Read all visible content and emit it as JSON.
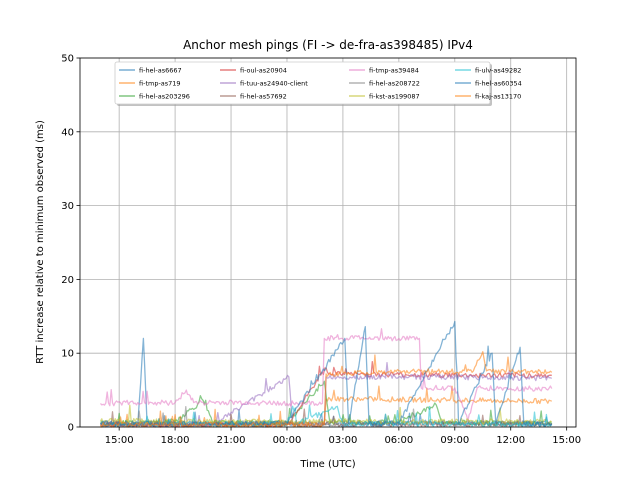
{
  "chart_data": {
    "type": "line",
    "title": "Anchor mesh pings (FI -> de-fra-as398485) IPv4",
    "xlabel": "Time (UTC)",
    "ylabel": "RTT increase relative to minimum observed (ms)",
    "ylim": [
      0,
      50
    ],
    "xlim_hours": [
      12.9,
      39.5
    ],
    "yticks": [
      0,
      10,
      20,
      30,
      40,
      50
    ],
    "xticks": [
      {
        "h": 15,
        "label": "15:00"
      },
      {
        "h": 18,
        "label": "18:00"
      },
      {
        "h": 21,
        "label": "21:00"
      },
      {
        "h": 24,
        "label": "00:00"
      },
      {
        "h": 27,
        "label": "03:00"
      },
      {
        "h": 30,
        "label": "06:00"
      },
      {
        "h": 33,
        "label": "09:00"
      },
      {
        "h": 36,
        "label": "12:00"
      },
      {
        "h": 39,
        "label": "15:00"
      }
    ],
    "grid": true,
    "legend": {
      "position": "top-center",
      "columns": 4
    },
    "series": [
      {
        "name": "fi-hel-as6667",
        "color": "#1f77b4",
        "points": [
          [
            14,
            0.3
          ],
          [
            16,
            0.4
          ],
          [
            16.3,
            12
          ],
          [
            16.5,
            0.4
          ],
          [
            20,
            0.4
          ],
          [
            24,
            0.3
          ],
          [
            26,
            0.5
          ],
          [
            28,
            0.4
          ],
          [
            32,
            0.5
          ],
          [
            36,
            0.5
          ],
          [
            38.2,
            0.4
          ]
        ]
      },
      {
        "name": "fi-tmp-as719",
        "color": "#ff7f0e",
        "points": [
          [
            14,
            0.2
          ],
          [
            20,
            0.3
          ],
          [
            26,
            0.3
          ],
          [
            26.1,
            3.8
          ],
          [
            28,
            3.8
          ],
          [
            31,
            3.7
          ],
          [
            34,
            3.6
          ],
          [
            38.2,
            3.5
          ]
        ]
      },
      {
        "name": "fi-hel-as203296",
        "color": "#2ca02c",
        "points": [
          [
            14,
            0.6
          ],
          [
            16,
            0.5
          ],
          [
            18,
            0.8
          ],
          [
            19.5,
            3.6
          ],
          [
            20,
            0.6
          ],
          [
            22,
            0.5
          ],
          [
            24,
            0.6
          ],
          [
            26,
            6.2
          ],
          [
            26.3,
            0.6
          ],
          [
            30,
            0.6
          ],
          [
            32,
            3.0
          ],
          [
            32.3,
            0.6
          ],
          [
            36,
            0.5
          ],
          [
            38.2,
            0.4
          ]
        ]
      },
      {
        "name": "fi-oul-as20904",
        "color": "#d62728",
        "points": [
          [
            14,
            0.3
          ],
          [
            20,
            0.3
          ],
          [
            24,
            0.3
          ],
          [
            26.1,
            8.0
          ],
          [
            26.3,
            7.2
          ],
          [
            30,
            7.1
          ],
          [
            34,
            7.0
          ],
          [
            38.2,
            7.0
          ]
        ]
      },
      {
        "name": "fi-tuu-as24940-client",
        "color": "#9467bd",
        "points": [
          [
            14,
            0.3
          ],
          [
            20,
            0.3
          ],
          [
            24.1,
            6.8
          ],
          [
            24.3,
            0.3
          ],
          [
            26,
            0.3
          ],
          [
            26.1,
            6.8
          ],
          [
            30,
            6.8
          ],
          [
            34,
            6.7
          ],
          [
            38.2,
            6.6
          ]
        ]
      },
      {
        "name": "fi-hel-as57692",
        "color": "#8c564b",
        "points": [
          [
            14,
            0.4
          ],
          [
            20,
            0.4
          ],
          [
            24,
            0.5
          ],
          [
            26,
            0.4
          ],
          [
            30,
            0.4
          ],
          [
            34,
            0.4
          ],
          [
            38.2,
            0.4
          ]
        ]
      },
      {
        "name": "fi-tmp-as39484",
        "color": "#e377c2",
        "points": [
          [
            14,
            3.2
          ],
          [
            16,
            3.3
          ],
          [
            18,
            3.3
          ],
          [
            18.6,
            5.0
          ],
          [
            19,
            3.3
          ],
          [
            22,
            3.3
          ],
          [
            24,
            3.2
          ],
          [
            25.9,
            3.2
          ],
          [
            26,
            12.0
          ],
          [
            28,
            12.1
          ],
          [
            30,
            12.0
          ],
          [
            31.1,
            12.0
          ],
          [
            31.2,
            5.3
          ],
          [
            33,
            5.3
          ],
          [
            33.5,
            2.5
          ],
          [
            33.7,
            0.8
          ],
          [
            34.2,
            5.3
          ],
          [
            36,
            5.2
          ],
          [
            38.2,
            5.2
          ]
        ]
      },
      {
        "name": "fi-hel-as208722",
        "color": "#7f7f7f",
        "points": [
          [
            14,
            0.5
          ],
          [
            20,
            0.5
          ],
          [
            24,
            0.5
          ],
          [
            26,
            0.5
          ],
          [
            30,
            0.6
          ],
          [
            34,
            0.5
          ],
          [
            38.2,
            0.5
          ]
        ]
      },
      {
        "name": "fi-kst-as199087",
        "color": "#bcbd22",
        "points": [
          [
            14,
            0.8
          ],
          [
            20,
            0.8
          ],
          [
            24,
            0.7
          ],
          [
            26,
            0.8
          ],
          [
            30,
            0.7
          ],
          [
            34,
            0.8
          ],
          [
            38.2,
            0.7
          ]
        ]
      },
      {
        "name": "fi-ulv-as49282",
        "color": "#17becf",
        "points": [
          [
            14,
            0.4
          ],
          [
            20,
            0.4
          ],
          [
            24,
            0.4
          ],
          [
            24.3,
            2.8
          ],
          [
            24.5,
            0.4
          ],
          [
            26.7,
            2.8
          ],
          [
            27,
            0.4
          ],
          [
            30,
            0.4
          ],
          [
            34,
            0.4
          ],
          [
            38.2,
            0.3
          ]
        ]
      },
      {
        "name": "fi-hel-as60354",
        "color": "#1f77b4",
        "points": [
          [
            14,
            0.5
          ],
          [
            20,
            0.4
          ],
          [
            24,
            0.5
          ],
          [
            27.1,
            12.0
          ],
          [
            27.3,
            0.5
          ],
          [
            28.2,
            13.6
          ],
          [
            28.4,
            0.5
          ],
          [
            30,
            0.5
          ],
          [
            33,
            14.3
          ],
          [
            33.2,
            0.5
          ],
          [
            35,
            10.0
          ],
          [
            35.2,
            0.5
          ],
          [
            36.5,
            10.8
          ],
          [
            36.7,
            0.5
          ],
          [
            38.2,
            0.4
          ]
        ]
      },
      {
        "name": "fi-kaj-as13170",
        "color": "#ff7f0e",
        "points": [
          [
            14,
            0.3
          ],
          [
            20,
            0.3
          ],
          [
            24,
            0.3
          ],
          [
            26,
            0.3
          ],
          [
            26.1,
            7.2
          ],
          [
            28,
            7.3
          ],
          [
            30,
            7.6
          ],
          [
            32,
            7.5
          ],
          [
            34,
            7.6
          ],
          [
            34.5,
            10.2
          ],
          [
            34.7,
            7.6
          ],
          [
            36,
            7.5
          ],
          [
            38.2,
            7.4
          ]
        ]
      }
    ]
  }
}
